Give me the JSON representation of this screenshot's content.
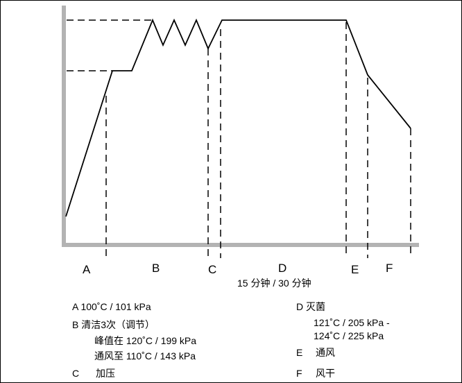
{
  "phases": [
    "A",
    "B",
    "C",
    "D",
    "E",
    "F"
  ],
  "duration_label": "15 分钟 / 30 分钟",
  "legend": {
    "a": "A 100˚C / 101 kPa",
    "b": "B 清洁3次（调节）",
    "b_peak": "峰值在 120˚C / 199 kPa",
    "b_vent": "通风至 110˚C / 143 kPa",
    "c_letter": "C",
    "c_text": "加压",
    "d": "D 灭菌",
    "d_range1": "121˚C / 205 kPa -",
    "d_range2": "124˚C / 225 kPa",
    "e_letter": "E",
    "e_text": "通风",
    "f_letter": "F",
    "f_text": "风干"
  },
  "colors": {
    "axis": "#b3b3b3",
    "line": "#000000"
  }
}
